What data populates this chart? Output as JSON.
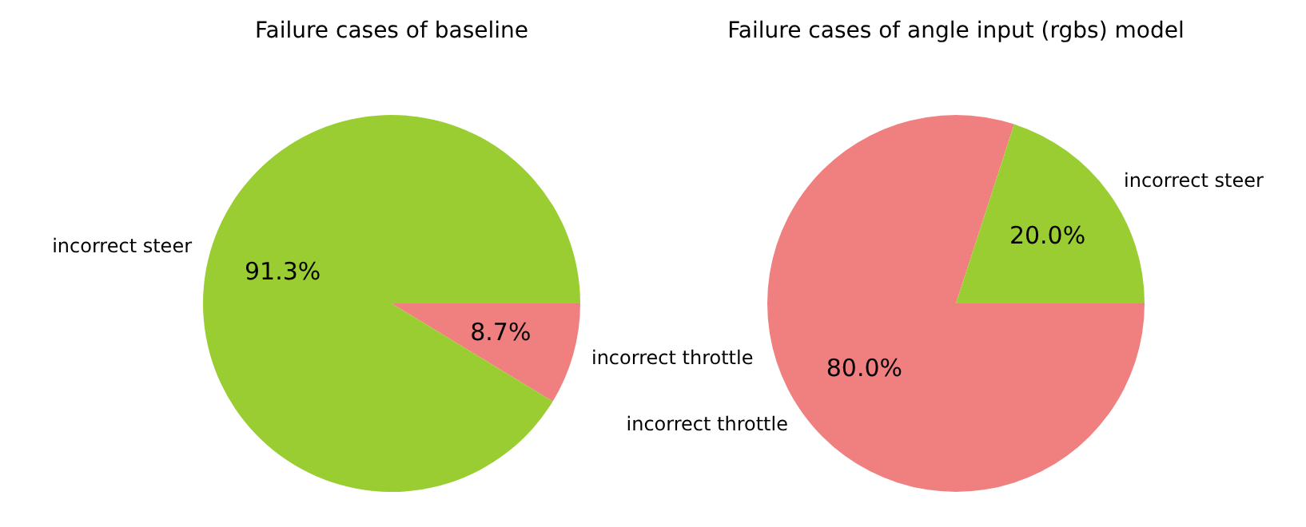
{
  "chart_data": [
    {
      "type": "pie",
      "title": "Failure cases of baseline",
      "categories": [
        "incorrect steer",
        "incorrect throttle"
      ],
      "values": [
        91.3,
        8.7
      ],
      "colors": [
        "#9acd32",
        "#f08080"
      ],
      "value_labels": [
        "91.3%",
        "8.7%"
      ],
      "legend": false
    },
    {
      "type": "pie",
      "title": "Failure cases of angle input (rgbs) model",
      "categories": [
        "incorrect steer",
        "incorrect throttle"
      ],
      "values": [
        20.0,
        80.0
      ],
      "colors": [
        "#9acd32",
        "#f08080"
      ],
      "value_labels": [
        "20.0%",
        "80.0%"
      ],
      "legend": false
    }
  ]
}
